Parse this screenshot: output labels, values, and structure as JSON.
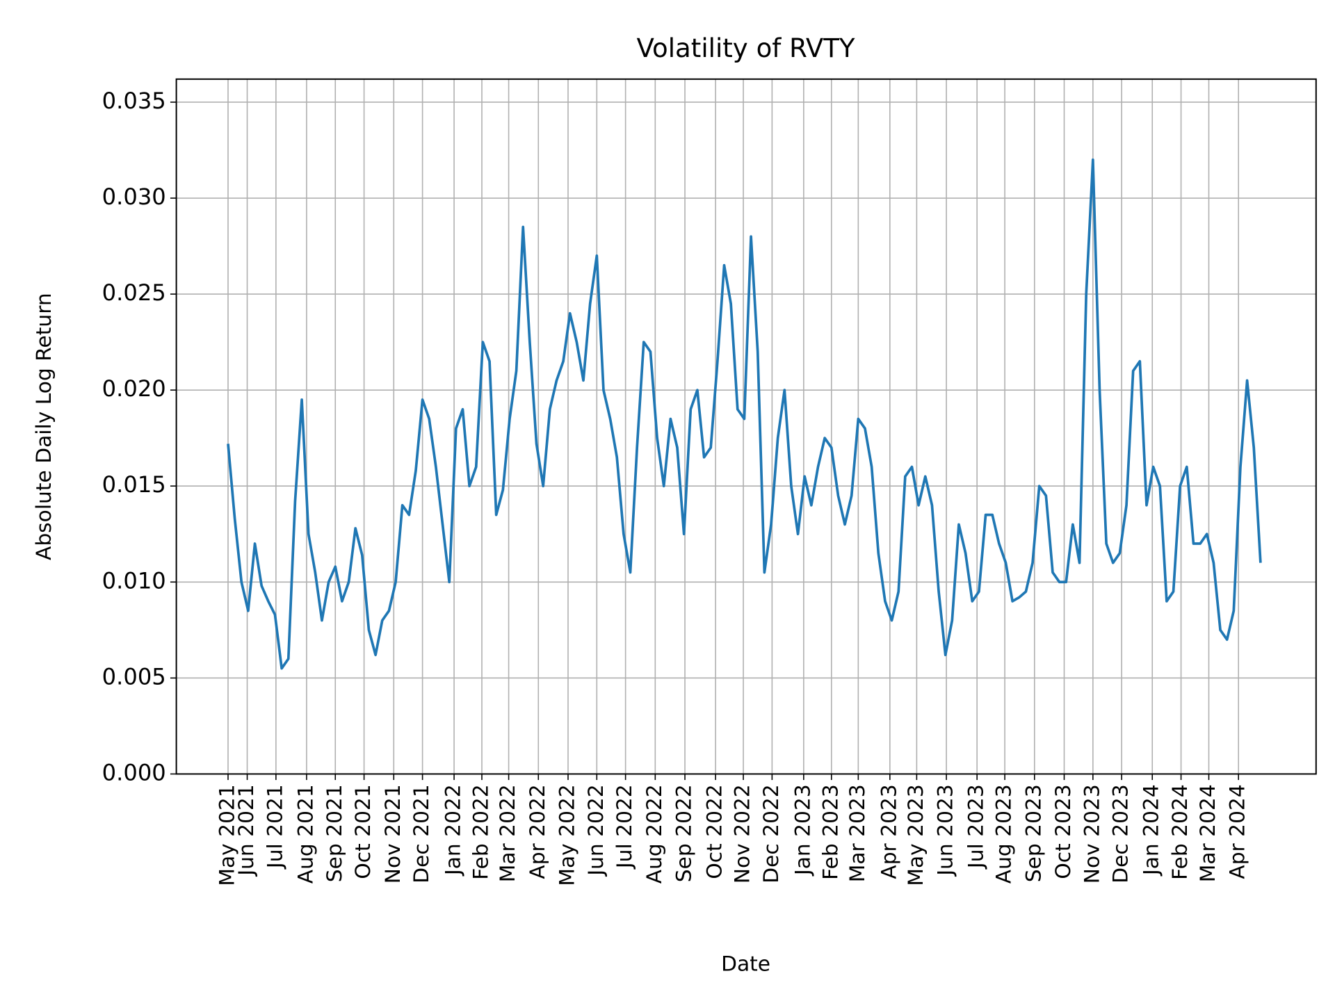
{
  "chart_data": {
    "type": "line",
    "title": "Volatility of RVTY",
    "x_label": "Date",
    "y_label": "Absolute Daily Log Return",
    "color": "#1f77b4",
    "grid": true,
    "x": [
      "2021-05-12",
      "2021-05-19",
      "2021-05-26",
      "2021-06-02",
      "2021-06-09",
      "2021-06-16",
      "2021-06-23",
      "2021-06-30",
      "2021-07-07",
      "2021-07-14",
      "2021-07-21",
      "2021-07-28",
      "2021-08-04",
      "2021-08-11",
      "2021-08-18",
      "2021-08-25",
      "2021-09-01",
      "2021-09-08",
      "2021-09-15",
      "2021-09-22",
      "2021-09-29",
      "2021-10-06",
      "2021-10-13",
      "2021-10-20",
      "2021-10-27",
      "2021-11-03",
      "2021-11-10",
      "2021-11-17",
      "2021-11-24",
      "2021-12-01",
      "2021-12-08",
      "2021-12-15",
      "2021-12-22",
      "2021-12-29",
      "2022-01-05",
      "2022-01-12",
      "2022-01-19",
      "2022-01-26",
      "2022-02-02",
      "2022-02-09",
      "2022-02-16",
      "2022-02-23",
      "2022-03-02",
      "2022-03-09",
      "2022-03-16",
      "2022-03-23",
      "2022-03-30",
      "2022-04-06",
      "2022-04-13",
      "2022-04-20",
      "2022-04-27",
      "2022-05-04",
      "2022-05-11",
      "2022-05-18",
      "2022-05-25",
      "2022-06-01",
      "2022-06-08",
      "2022-06-15",
      "2022-06-22",
      "2022-06-29",
      "2022-07-06",
      "2022-07-13",
      "2022-07-20",
      "2022-07-27",
      "2022-08-03",
      "2022-08-10",
      "2022-08-17",
      "2022-08-24",
      "2022-08-31",
      "2022-09-07",
      "2022-09-14",
      "2022-09-21",
      "2022-09-28",
      "2022-10-05",
      "2022-10-12",
      "2022-10-19",
      "2022-10-26",
      "2022-11-02",
      "2022-11-09",
      "2022-11-16",
      "2022-11-23",
      "2022-11-30",
      "2022-12-07",
      "2022-12-14",
      "2022-12-21",
      "2022-12-28",
      "2023-01-04",
      "2023-01-11",
      "2023-01-18",
      "2023-01-25",
      "2023-02-01",
      "2023-02-08",
      "2023-02-15",
      "2023-02-22",
      "2023-03-01",
      "2023-03-08",
      "2023-03-15",
      "2023-03-22",
      "2023-03-29",
      "2023-04-05",
      "2023-04-12",
      "2023-04-19",
      "2023-04-26",
      "2023-05-03",
      "2023-05-10",
      "2023-05-17",
      "2023-05-24",
      "2023-05-31",
      "2023-06-07",
      "2023-06-14",
      "2023-06-21",
      "2023-06-28",
      "2023-07-05",
      "2023-07-12",
      "2023-07-19",
      "2023-07-26",
      "2023-08-02",
      "2023-08-09",
      "2023-08-16",
      "2023-08-23",
      "2023-08-30",
      "2023-09-06",
      "2023-09-13",
      "2023-09-20",
      "2023-09-27",
      "2023-10-04",
      "2023-10-11",
      "2023-10-18",
      "2023-10-25",
      "2023-11-01",
      "2023-11-08",
      "2023-11-15",
      "2023-11-22",
      "2023-11-29",
      "2023-12-06",
      "2023-12-13",
      "2023-12-20",
      "2023-12-27",
      "2024-01-03",
      "2024-01-10",
      "2024-01-17",
      "2024-01-24",
      "2024-01-31",
      "2024-02-07",
      "2024-02-14",
      "2024-02-21",
      "2024-02-28",
      "2024-03-06",
      "2024-03-13",
      "2024-03-20",
      "2024-03-27",
      "2024-04-03",
      "2024-04-10",
      "2024-04-17",
      "2024-04-24"
    ],
    "values": [
      0.0172,
      0.0133,
      0.01,
      0.0085,
      0.012,
      0.0098,
      0.009,
      0.0083,
      0.0055,
      0.006,
      0.0142,
      0.0195,
      0.0125,
      0.0105,
      0.008,
      0.01,
      0.0108,
      0.009,
      0.01,
      0.0128,
      0.0114,
      0.0075,
      0.0062,
      0.008,
      0.0085,
      0.01,
      0.014,
      0.0135,
      0.0158,
      0.0195,
      0.0185,
      0.016,
      0.013,
      0.01,
      0.018,
      0.019,
      0.015,
      0.016,
      0.0225,
      0.0215,
      0.0135,
      0.0148,
      0.0185,
      0.021,
      0.0285,
      0.0225,
      0.0172,
      0.015,
      0.019,
      0.0205,
      0.0215,
      0.024,
      0.0225,
      0.0205,
      0.0245,
      0.027,
      0.02,
      0.0185,
      0.0165,
      0.0125,
      0.0105,
      0.017,
      0.0225,
      0.022,
      0.0175,
      0.015,
      0.0185,
      0.017,
      0.0125,
      0.019,
      0.02,
      0.0165,
      0.017,
      0.0215,
      0.0265,
      0.0245,
      0.019,
      0.0185,
      0.028,
      0.022,
      0.0105,
      0.013,
      0.0175,
      0.02,
      0.015,
      0.0125,
      0.0155,
      0.014,
      0.016,
      0.0175,
      0.017,
      0.0145,
      0.013,
      0.0145,
      0.0185,
      0.018,
      0.016,
      0.0115,
      0.009,
      0.008,
      0.0095,
      0.0155,
      0.016,
      0.014,
      0.0155,
      0.014,
      0.0095,
      0.0062,
      0.008,
      0.013,
      0.0115,
      0.009,
      0.0095,
      0.0135,
      0.0135,
      0.012,
      0.011,
      0.009,
      0.0092,
      0.0095,
      0.011,
      0.015,
      0.0145,
      0.0105,
      0.01,
      0.01,
      0.013,
      0.011,
      0.025,
      0.032,
      0.02,
      0.012,
      0.011,
      0.0115,
      0.014,
      0.021,
      0.0215,
      0.014,
      0.016,
      0.015,
      0.009,
      0.0095,
      0.015,
      0.016,
      0.012,
      0.012,
      0.0125,
      0.011,
      0.0075,
      0.007,
      0.0085,
      0.016,
      0.0205,
      0.017,
      0.011
    ],
    "xlim": [
      "2021-03-19",
      "2024-06-21"
    ],
    "xticks": [
      {
        "value": "2021-05-12",
        "label": "May 2021"
      },
      {
        "value": "2021-06-01",
        "label": "Jun 2021"
      },
      {
        "value": "2021-07-01",
        "label": "Jul 2021"
      },
      {
        "value": "2021-08-02",
        "label": "Aug 2021"
      },
      {
        "value": "2021-09-01",
        "label": "Sep 2021"
      },
      {
        "value": "2021-10-01",
        "label": "Oct 2021"
      },
      {
        "value": "2021-11-01",
        "label": "Nov 2021"
      },
      {
        "value": "2021-12-01",
        "label": "Dec 2021"
      },
      {
        "value": "2022-01-03",
        "label": "Jan 2022"
      },
      {
        "value": "2022-02-01",
        "label": "Feb 2022"
      },
      {
        "value": "2022-03-01",
        "label": "Mar 2022"
      },
      {
        "value": "2022-04-01",
        "label": "Apr 2022"
      },
      {
        "value": "2022-05-02",
        "label": "May 2022"
      },
      {
        "value": "2022-06-01",
        "label": "Jun 2022"
      },
      {
        "value": "2022-07-01",
        "label": "Jul 2022"
      },
      {
        "value": "2022-08-01",
        "label": "Aug 2022"
      },
      {
        "value": "2022-09-01",
        "label": "Sep 2022"
      },
      {
        "value": "2022-10-03",
        "label": "Oct 2022"
      },
      {
        "value": "2022-11-01",
        "label": "Nov 2022"
      },
      {
        "value": "2022-12-01",
        "label": "Dec 2022"
      },
      {
        "value": "2023-01-03",
        "label": "Jan 2023"
      },
      {
        "value": "2023-02-01",
        "label": "Feb 2023"
      },
      {
        "value": "2023-03-01",
        "label": "Mar 2023"
      },
      {
        "value": "2023-04-03",
        "label": "Apr 2023"
      },
      {
        "value": "2023-05-01",
        "label": "May 2023"
      },
      {
        "value": "2023-06-01",
        "label": "Jun 2023"
      },
      {
        "value": "2023-07-03",
        "label": "Jul 2023"
      },
      {
        "value": "2023-08-01",
        "label": "Aug 2023"
      },
      {
        "value": "2023-09-01",
        "label": "Sep 2023"
      },
      {
        "value": "2023-10-02",
        "label": "Oct 2023"
      },
      {
        "value": "2023-11-01",
        "label": "Nov 2023"
      },
      {
        "value": "2023-12-01",
        "label": "Dec 2023"
      },
      {
        "value": "2024-01-02",
        "label": "Jan 2024"
      },
      {
        "value": "2024-02-01",
        "label": "Feb 2024"
      },
      {
        "value": "2024-03-01",
        "label": "Mar 2024"
      },
      {
        "value": "2024-04-01",
        "label": "Apr 2024"
      }
    ],
    "ylim": [
      0,
      0.0362
    ],
    "yticks": [
      {
        "value": 0,
        "label": "0.000"
      },
      0.005,
      {
        "value": 0.01,
        "label": "0.010"
      },
      0.015,
      {
        "value": 0.02,
        "label": "0.020"
      },
      0.025,
      {
        "value": 0.03,
        "label": "0.030"
      },
      0.035
    ]
  }
}
